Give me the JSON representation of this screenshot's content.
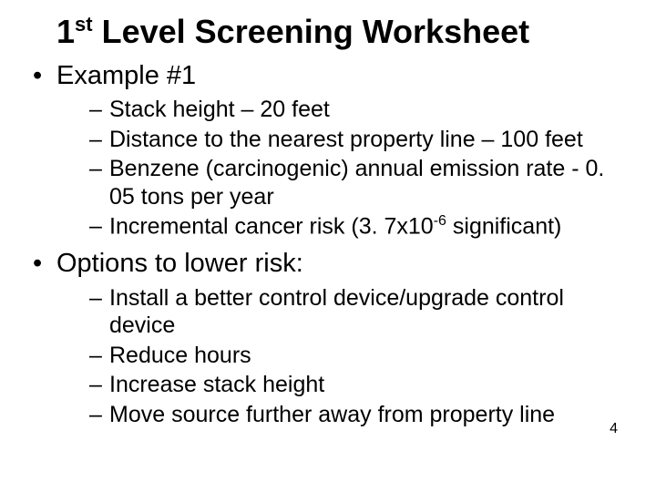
{
  "colors": {
    "background": "#ffffff",
    "text": "#000000"
  },
  "typography": {
    "font_family": "Arial",
    "title_fontsize": 36,
    "title_weight": "bold",
    "level1_fontsize": 29,
    "level2_fontsize": 25,
    "pagenum_fontsize": 16
  },
  "title": {
    "pre": "1",
    "sup": "st",
    "post": " Level Screening Worksheet"
  },
  "bullets": [
    {
      "text": "Example #1",
      "children": [
        {
          "text": "Stack height – 20 feet"
        },
        {
          "text": "Distance to the nearest property line – 100 feet"
        },
        {
          "text": " Benzene (carcinogenic) annual emission rate - 0. 05 tons per year"
        },
        {
          "pre": " Incremental cancer risk (3. 7x10",
          "sup": "-6",
          "post": " significant)"
        }
      ]
    },
    {
      "text": "Options to lower risk:",
      "children": [
        {
          "text": "Install a better control device/upgrade control device"
        },
        {
          "text": "Reduce hours"
        },
        {
          "text": "Increase stack height"
        },
        {
          "text": "Move source further away from property line"
        }
      ]
    }
  ],
  "page_number": "4"
}
